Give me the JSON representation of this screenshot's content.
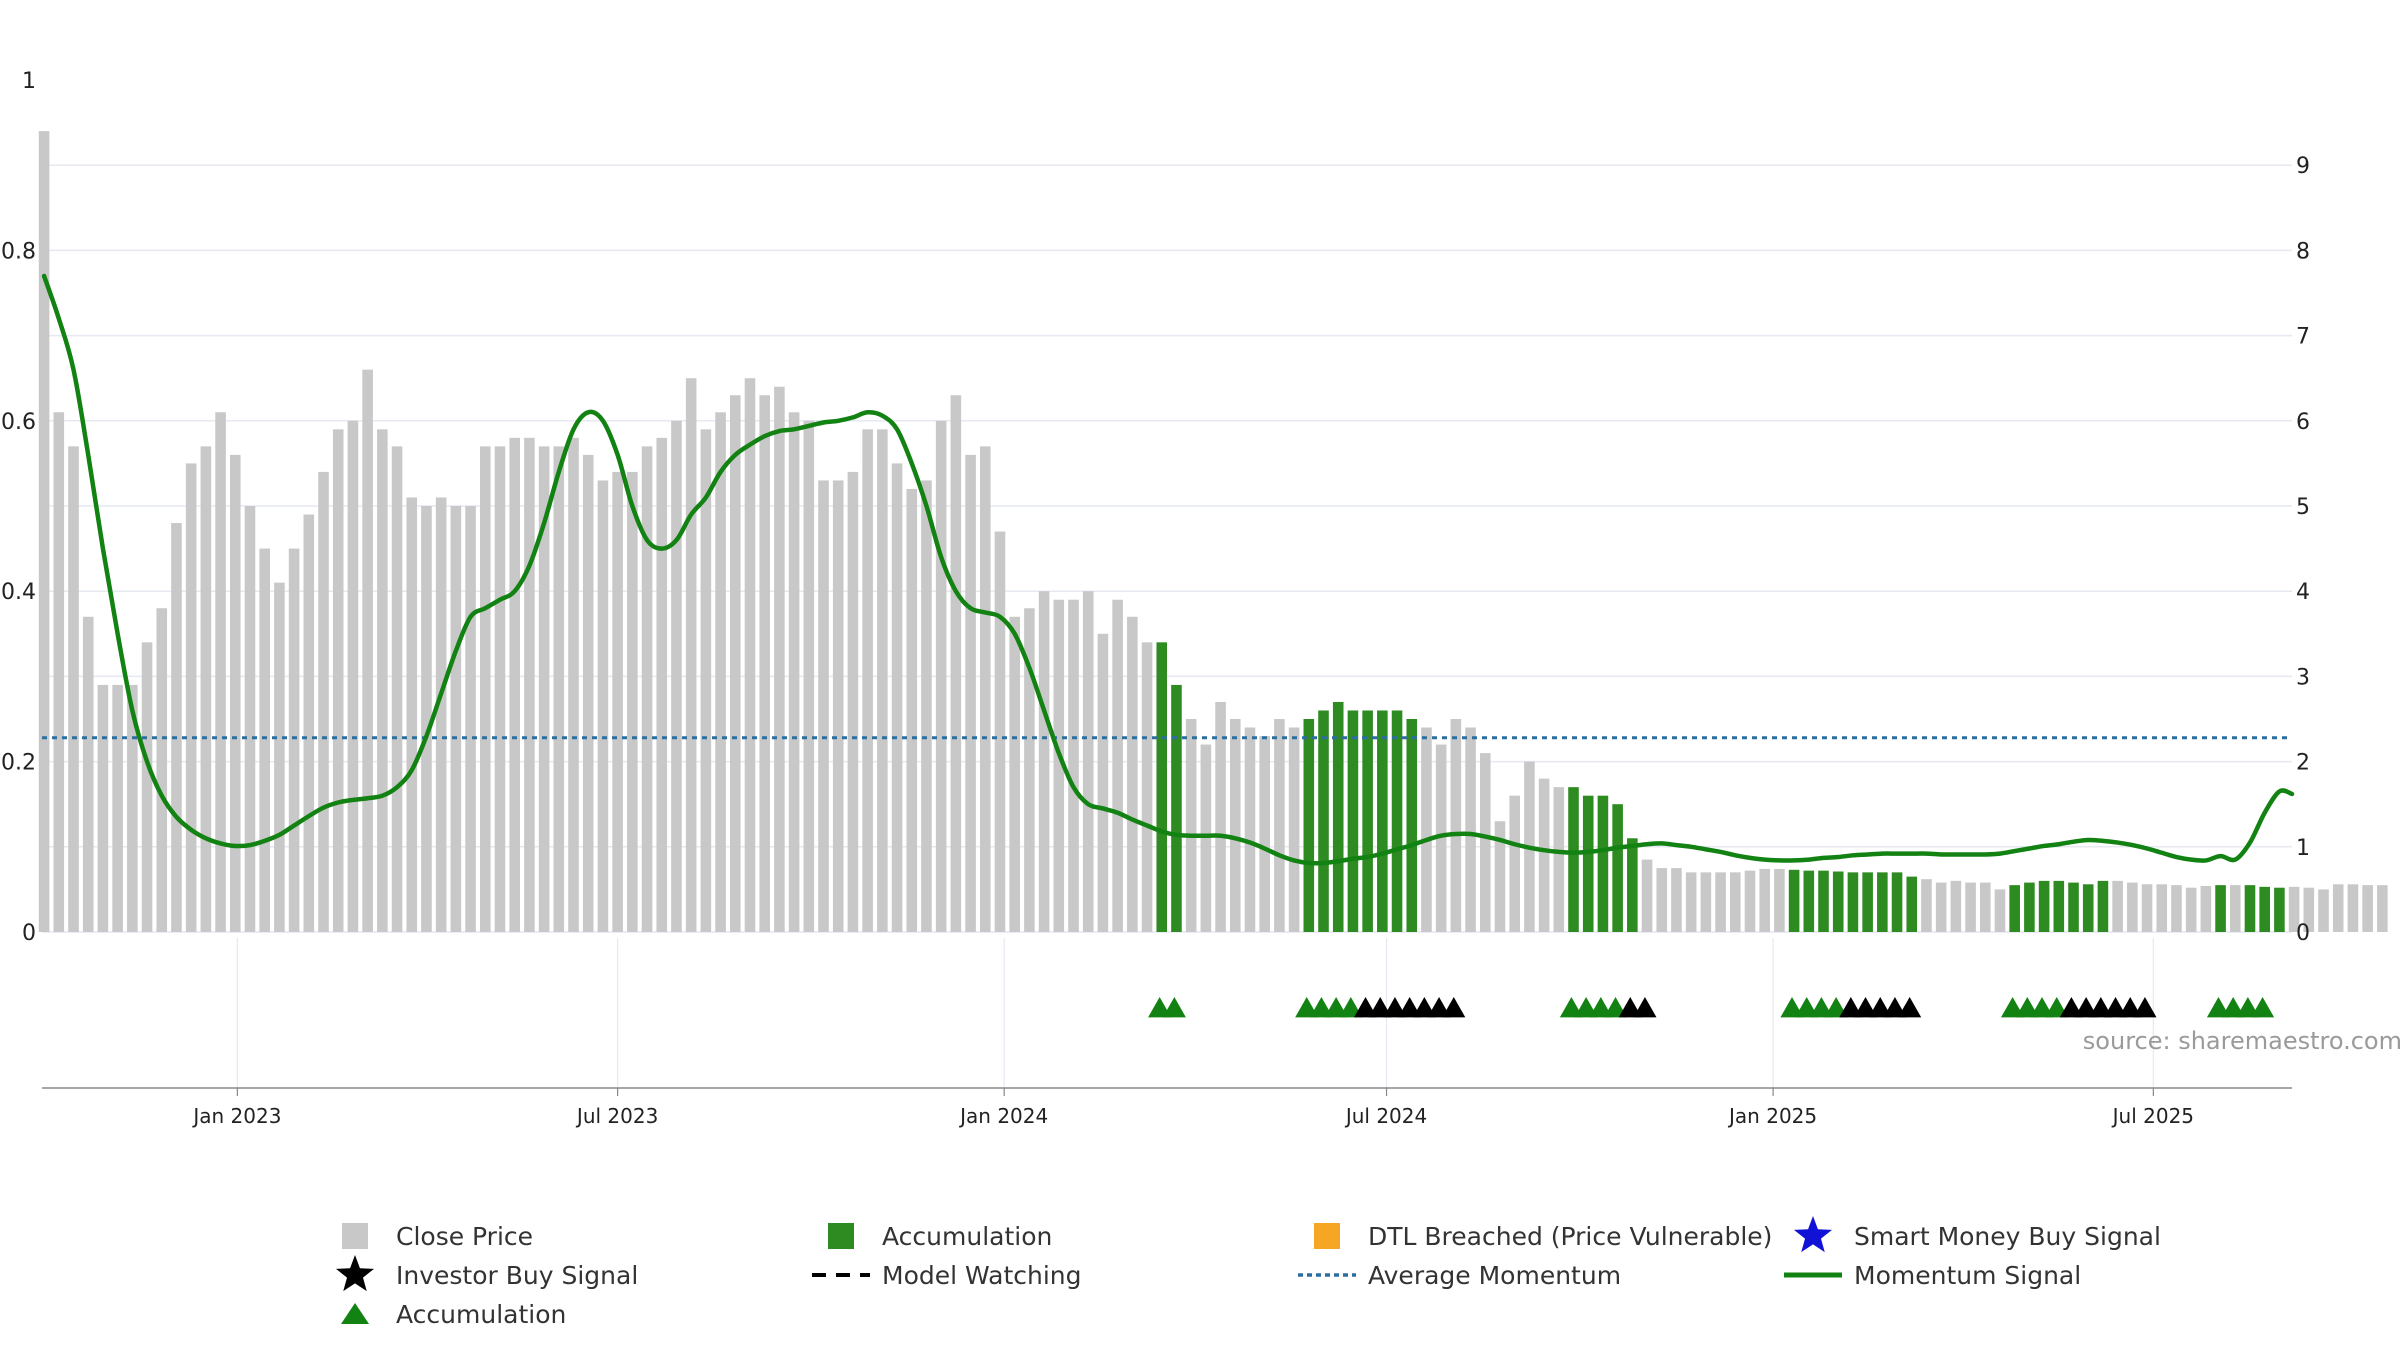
{
  "chart_data": {
    "type": "bar",
    "source": "source: sharemaestro.com",
    "colors": {
      "close_price": "#c8c8c8",
      "accumulation_bar": "#2e8b22",
      "momentum_line": "#128212",
      "average_momentum": "#2c6e9e",
      "investor_buy_marker": "#000000",
      "accumulation_marker": "#128212",
      "dtl_breached": "#f5a623",
      "smart_money": "#1212d6",
      "grid": "#e6e9f2",
      "axis": "#888888"
    },
    "left_axis": {
      "ylim": [
        0,
        1
      ],
      "ticks": [
        "0",
        "0.2",
        "0.4",
        "0.6",
        "0.8",
        "1"
      ]
    },
    "right_axis": {
      "ylim": [
        0,
        10
      ],
      "ticks": [
        "0",
        "1",
        "2",
        "3",
        "4",
        "5",
        "6",
        "7",
        "8",
        "9"
      ]
    },
    "x_axis": {
      "start": "2022-09-30",
      "end": "2025-09-05",
      "ticks": [
        {
          "date": "2023-01-01",
          "label": "Jan 2023"
        },
        {
          "date": "2023-07-01",
          "label": "Jul 2023"
        },
        {
          "date": "2024-01-01",
          "label": "Jan 2024"
        },
        {
          "date": "2024-07-01",
          "label": "Jul 2024"
        },
        {
          "date": "2025-01-01",
          "label": "Jan 2025"
        },
        {
          "date": "2025-07-01",
          "label": "Jul 2025"
        }
      ]
    },
    "close_price": {
      "start_date": "2022-10-01",
      "interval_days": 7,
      "values": [
        9.4,
        6.1,
        5.7,
        3.7,
        2.9,
        2.9,
        2.9,
        3.4,
        3.8,
        4.8,
        5.5,
        5.7,
        6.1,
        5.6,
        5.0,
        4.5,
        4.1,
        4.5,
        4.9,
        5.4,
        5.9,
        6.0,
        6.6,
        5.9,
        5.7,
        5.1,
        5.0,
        5.1,
        5.0,
        5.0,
        5.7,
        5.7,
        5.8,
        5.8,
        5.7,
        5.7,
        5.8,
        5.6,
        5.3,
        5.4,
        5.4,
        5.7,
        5.8,
        6.0,
        6.5,
        5.9,
        6.1,
        6.3,
        6.5,
        6.3,
        6.4,
        6.1,
        6.0,
        5.3,
        5.3,
        5.4,
        5.9,
        5.9,
        5.5,
        5.2,
        5.3,
        6.0,
        6.3,
        5.6,
        5.7,
        4.7,
        3.7,
        3.8,
        4.0,
        3.9,
        3.9,
        4.0,
        3.5,
        3.9,
        3.7,
        3.4,
        3.4,
        2.9,
        2.5,
        2.2,
        2.7,
        2.5,
        2.4,
        2.3,
        2.5,
        2.4,
        2.5,
        2.6,
        2.7,
        2.6,
        2.6,
        2.6,
        2.6,
        2.5,
        2.4,
        2.2,
        2.5,
        2.4,
        2.1,
        1.3,
        1.6,
        2.0,
        1.8,
        1.7,
        1.7,
        1.6,
        1.6,
        1.5,
        1.1,
        0.85,
        0.75,
        0.75,
        0.7,
        0.7,
        0.7,
        0.7,
        0.72,
        0.74,
        0.74,
        0.73,
        0.72,
        0.72,
        0.71,
        0.7,
        0.7,
        0.7,
        0.7,
        0.65,
        0.62,
        0.58,
        0.6,
        0.58,
        0.58,
        0.5,
        0.55,
        0.58,
        0.6,
        0.6,
        0.58,
        0.56,
        0.6,
        0.6,
        0.58,
        0.56,
        0.56,
        0.55,
        0.52,
        0.54,
        0.55,
        0.55,
        0.55,
        0.53,
        0.52,
        0.53,
        0.52,
        0.5,
        0.56,
        0.56,
        0.55,
        0.55
      ]
    },
    "accumulation_periods": [
      {
        "start": "2024-03-15",
        "end": "2024-03-29"
      },
      {
        "start": "2024-05-24",
        "end": "2024-07-19"
      },
      {
        "start": "2024-09-27",
        "end": "2024-11-01"
      },
      {
        "start": "2025-01-10",
        "end": "2025-03-14"
      },
      {
        "start": "2025-04-25",
        "end": "2025-06-13"
      },
      {
        "start": "2025-08-01",
        "end": "2025-08-08"
      },
      {
        "start": "2025-08-15",
        "end": "2025-09-01"
      }
    ],
    "momentum_signal": [
      [
        "2022-10-01",
        0.77
      ],
      [
        "2022-10-08",
        0.72
      ],
      [
        "2022-10-15",
        0.66
      ],
      [
        "2022-10-22",
        0.56
      ],
      [
        "2022-10-29",
        0.45
      ],
      [
        "2022-11-05",
        0.35
      ],
      [
        "2022-11-12",
        0.26
      ],
      [
        "2022-11-19",
        0.2
      ],
      [
        "2022-11-26",
        0.16
      ],
      [
        "2022-12-03",
        0.135
      ],
      [
        "2022-12-10",
        0.12
      ],
      [
        "2022-12-17",
        0.11
      ],
      [
        "2022-12-24",
        0.104
      ],
      [
        "2022-12-31",
        0.101
      ],
      [
        "2023-01-07",
        0.102
      ],
      [
        "2023-01-14",
        0.107
      ],
      [
        "2023-01-21",
        0.114
      ],
      [
        "2023-01-28",
        0.125
      ],
      [
        "2023-02-04",
        0.136
      ],
      [
        "2023-02-11",
        0.146
      ],
      [
        "2023-02-18",
        0.152
      ],
      [
        "2023-02-25",
        0.155
      ],
      [
        "2023-03-04",
        0.157
      ],
      [
        "2023-03-11",
        0.16
      ],
      [
        "2023-03-18",
        0.17
      ],
      [
        "2023-03-25",
        0.19
      ],
      [
        "2023-04-01",
        0.23
      ],
      [
        "2023-04-08",
        0.28
      ],
      [
        "2023-04-15",
        0.33
      ],
      [
        "2023-04-22",
        0.37
      ],
      [
        "2023-04-29",
        0.38
      ],
      [
        "2023-05-06",
        0.39
      ],
      [
        "2023-05-13",
        0.4
      ],
      [
        "2023-05-20",
        0.43
      ],
      [
        "2023-05-27",
        0.48
      ],
      [
        "2023-06-03",
        0.54
      ],
      [
        "2023-06-10",
        0.59
      ],
      [
        "2023-06-17",
        0.61
      ],
      [
        "2023-06-24",
        0.6
      ],
      [
        "2023-07-01",
        0.56
      ],
      [
        "2023-07-08",
        0.5
      ],
      [
        "2023-07-15",
        0.46
      ],
      [
        "2023-07-22",
        0.45
      ],
      [
        "2023-07-29",
        0.46
      ],
      [
        "2023-08-05",
        0.49
      ],
      [
        "2023-08-12",
        0.51
      ],
      [
        "2023-08-19",
        0.54
      ],
      [
        "2023-08-26",
        0.56
      ],
      [
        "2023-09-02",
        0.572
      ],
      [
        "2023-09-09",
        0.582
      ],
      [
        "2023-09-16",
        0.588
      ],
      [
        "2023-09-23",
        0.59
      ],
      [
        "2023-09-30",
        0.594
      ],
      [
        "2023-10-07",
        0.598
      ],
      [
        "2023-10-14",
        0.6
      ],
      [
        "2023-10-21",
        0.604
      ],
      [
        "2023-10-28",
        0.61
      ],
      [
        "2023-11-04",
        0.606
      ],
      [
        "2023-11-11",
        0.59
      ],
      [
        "2023-11-18",
        0.55
      ],
      [
        "2023-11-25",
        0.5
      ],
      [
        "2023-12-02",
        0.44
      ],
      [
        "2023-12-09",
        0.4
      ],
      [
        "2023-12-16",
        0.38
      ],
      [
        "2023-12-23",
        0.375
      ],
      [
        "2023-12-30",
        0.37
      ],
      [
        "2024-01-06",
        0.35
      ],
      [
        "2024-01-13",
        0.31
      ],
      [
        "2024-01-20",
        0.26
      ],
      [
        "2024-01-27",
        0.21
      ],
      [
        "2024-02-03",
        0.17
      ],
      [
        "2024-02-10",
        0.15
      ],
      [
        "2024-02-17",
        0.145
      ],
      [
        "2024-02-24",
        0.14
      ],
      [
        "2024-03-02",
        0.132
      ],
      [
        "2024-03-09",
        0.125
      ],
      [
        "2024-03-16",
        0.118
      ],
      [
        "2024-03-23",
        0.114
      ],
      [
        "2024-03-30",
        0.113
      ],
      [
        "2024-04-06",
        0.113
      ],
      [
        "2024-04-13",
        0.113
      ],
      [
        "2024-04-20",
        0.11
      ],
      [
        "2024-04-27",
        0.105
      ],
      [
        "2024-05-04",
        0.098
      ],
      [
        "2024-05-11",
        0.09
      ],
      [
        "2024-05-18",
        0.084
      ],
      [
        "2024-05-25",
        0.081
      ],
      [
        "2024-06-01",
        0.081
      ],
      [
        "2024-06-08",
        0.083
      ],
      [
        "2024-06-15",
        0.086
      ],
      [
        "2024-06-22",
        0.088
      ],
      [
        "2024-06-29",
        0.092
      ],
      [
        "2024-07-06",
        0.097
      ],
      [
        "2024-07-13",
        0.102
      ],
      [
        "2024-07-20",
        0.108
      ],
      [
        "2024-07-27",
        0.113
      ],
      [
        "2024-08-03",
        0.115
      ],
      [
        "2024-08-10",
        0.115
      ],
      [
        "2024-08-17",
        0.112
      ],
      [
        "2024-08-24",
        0.108
      ],
      [
        "2024-08-31",
        0.103
      ],
      [
        "2024-09-07",
        0.099
      ],
      [
        "2024-09-14",
        0.096
      ],
      [
        "2024-09-21",
        0.094
      ],
      [
        "2024-09-28",
        0.093
      ],
      [
        "2024-10-05",
        0.094
      ],
      [
        "2024-10-12",
        0.096
      ],
      [
        "2024-10-19",
        0.099
      ],
      [
        "2024-10-26",
        0.101
      ],
      [
        "2024-11-02",
        0.103
      ],
      [
        "2024-11-09",
        0.104
      ],
      [
        "2024-11-16",
        0.102
      ],
      [
        "2024-11-23",
        0.1
      ],
      [
        "2024-11-30",
        0.097
      ],
      [
        "2024-12-07",
        0.094
      ],
      [
        "2024-12-14",
        0.09
      ],
      [
        "2024-12-21",
        0.087
      ],
      [
        "2024-12-28",
        0.085
      ],
      [
        "2025-01-04",
        0.084
      ],
      [
        "2025-01-11",
        0.084
      ],
      [
        "2025-01-18",
        0.085
      ],
      [
        "2025-01-25",
        0.087
      ],
      [
        "2025-02-01",
        0.088
      ],
      [
        "2025-02-08",
        0.09
      ],
      [
        "2025-02-15",
        0.091
      ],
      [
        "2025-02-22",
        0.092
      ],
      [
        "2025-03-01",
        0.092
      ],
      [
        "2025-03-08",
        0.092
      ],
      [
        "2025-03-15",
        0.092
      ],
      [
        "2025-03-22",
        0.091
      ],
      [
        "2025-03-29",
        0.091
      ],
      [
        "2025-04-05",
        0.091
      ],
      [
        "2025-04-12",
        0.091
      ],
      [
        "2025-04-19",
        0.092
      ],
      [
        "2025-04-26",
        0.095
      ],
      [
        "2025-05-03",
        0.098
      ],
      [
        "2025-05-10",
        0.101
      ],
      [
        "2025-05-17",
        0.103
      ],
      [
        "2025-05-24",
        0.106
      ],
      [
        "2025-05-31",
        0.108
      ],
      [
        "2025-06-07",
        0.107
      ],
      [
        "2025-06-14",
        0.105
      ],
      [
        "2025-06-21",
        0.102
      ],
      [
        "2025-06-28",
        0.098
      ],
      [
        "2025-07-05",
        0.093
      ],
      [
        "2025-07-12",
        0.088
      ],
      [
        "2025-07-19",
        0.085
      ],
      [
        "2025-07-26",
        0.084
      ],
      [
        "2025-08-02",
        0.089
      ],
      [
        "2025-08-09",
        0.085
      ],
      [
        "2025-08-16",
        0.105
      ],
      [
        "2025-08-23",
        0.14
      ],
      [
        "2025-08-30",
        0.165
      ],
      [
        "2025-09-05",
        0.162
      ]
    ],
    "average_momentum": 0.228,
    "accumulation_markers": [
      "2024-03-15",
      "2024-03-22",
      "2024-05-24",
      "2024-05-31",
      "2024-06-07",
      "2024-06-14",
      "2024-09-27",
      "2024-10-04",
      "2024-10-11",
      "2024-10-18",
      "2025-01-10",
      "2025-01-17",
      "2025-01-24",
      "2025-01-31",
      "2025-04-25",
      "2025-05-02",
      "2025-05-09",
      "2025-05-16",
      "2025-08-01",
      "2025-08-08",
      "2025-08-15",
      "2025-08-22"
    ],
    "investor_buy_markers": [
      "2024-06-21",
      "2024-06-28",
      "2024-07-05",
      "2024-07-12",
      "2024-07-19",
      "2024-07-26",
      "2024-08-02",
      "2024-10-25",
      "2024-11-01",
      "2025-02-07",
      "2025-02-14",
      "2025-02-21",
      "2025-02-28",
      "2025-03-07",
      "2025-05-23",
      "2025-05-30",
      "2025-06-06",
      "2025-06-13",
      "2025-06-20",
      "2025-06-27"
    ],
    "legend": [
      {
        "label": "Close Price",
        "symbol": "square",
        "color": "#c8c8c8"
      },
      {
        "label": "Accumulation",
        "symbol": "square",
        "color": "#2e8b22"
      },
      {
        "label": "DTL Breached (Price Vulnerable)",
        "symbol": "square",
        "color": "#f5a623"
      },
      {
        "label": "Smart Money Buy Signal",
        "symbol": "star",
        "color": "#1212d6"
      },
      {
        "label": "Investor Buy Signal",
        "symbol": "star",
        "color": "#000000"
      },
      {
        "label": "Model Watching",
        "symbol": "dash",
        "color": "#000000"
      },
      {
        "label": "Average Momentum",
        "symbol": "dot",
        "color": "#2c6e9e"
      },
      {
        "label": "Momentum Signal",
        "symbol": "line",
        "color": "#128212"
      },
      {
        "label": "Accumulation",
        "symbol": "triangle",
        "color": "#128212"
      }
    ]
  }
}
